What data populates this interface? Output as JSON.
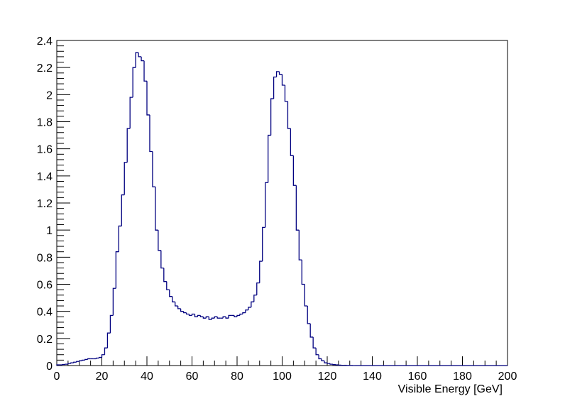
{
  "chart_data": {
    "type": "histogram",
    "x_label": "Visible Energy [GeV]",
    "color": "#000080",
    "bins": [
      0,
      1.25,
      2.5,
      3.75,
      5,
      6.25,
      7.5,
      8.75,
      10,
      11.25,
      12.5,
      13.75,
      15,
      16.25,
      17.5,
      18.75,
      20,
      21.25,
      22.5,
      23.75,
      25,
      26.25,
      27.5,
      28.75,
      30,
      31.25,
      32.5,
      33.75,
      35,
      36.25,
      37.5,
      38.75,
      40,
      41.25,
      42.5,
      43.75,
      45,
      46.25,
      47.5,
      48.75,
      50,
      51.25,
      52.5,
      53.75,
      55,
      56.25,
      57.5,
      58.75,
      60,
      61.25,
      62.5,
      63.75,
      65,
      66.25,
      67.5,
      68.75,
      70,
      71.25,
      72.5,
      73.75,
      75,
      76.25,
      77.5,
      78.75,
      80,
      81.25,
      82.5,
      83.75,
      85,
      86.25,
      87.5,
      88.75,
      90,
      91.25,
      92.5,
      93.75,
      95,
      96.25,
      97.5,
      98.75,
      100,
      101.25,
      102.5,
      103.75,
      105,
      106.25,
      107.5,
      108.75,
      110,
      111.25,
      112.5,
      113.75,
      115,
      116.25,
      117.5,
      118.75,
      120,
      121.25,
      122.5,
      123.75,
      125,
      126.25,
      127.5,
      128.75,
      130,
      131.25,
      132.5,
      133.75,
      135,
      136.25,
      137.5,
      138.75,
      140,
      141.25,
      142.5,
      143.75,
      145,
      146.25,
      147.5,
      148.75,
      150,
      151.25,
      152.5,
      153.75,
      155,
      156.25,
      157.5,
      158.75,
      160,
      161.25,
      162.5,
      163.75,
      165,
      166.25,
      167.5,
      168.75,
      170,
      171.25,
      172.5,
      173.75,
      175,
      176.25,
      177.5,
      178.75,
      180,
      181.25,
      182.5,
      183.75,
      185,
      186.25,
      187.5,
      188.75,
      190,
      191.25,
      192.5,
      193.75,
      195,
      196.25,
      197.5,
      198.75,
      200
    ],
    "values": [
      0.005,
      0.005,
      0.008,
      0.01,
      0.015,
      0.02,
      0.025,
      0.03,
      0.035,
      0.04,
      0.045,
      0.05,
      0.05,
      0.05,
      0.055,
      0.06,
      0.08,
      0.13,
      0.24,
      0.37,
      0.57,
      0.84,
      1.03,
      1.26,
      1.5,
      1.75,
      1.98,
      2.2,
      2.31,
      2.28,
      2.25,
      2.1,
      1.85,
      1.58,
      1.32,
      1.0,
      0.85,
      0.72,
      0.62,
      0.56,
      0.51,
      0.47,
      0.44,
      0.42,
      0.4,
      0.39,
      0.38,
      0.37,
      0.38,
      0.36,
      0.37,
      0.36,
      0.35,
      0.36,
      0.34,
      0.35,
      0.36,
      0.35,
      0.35,
      0.36,
      0.35,
      0.37,
      0.37,
      0.36,
      0.37,
      0.38,
      0.39,
      0.41,
      0.43,
      0.47,
      0.52,
      0.61,
      0.77,
      1.02,
      1.35,
      1.7,
      1.97,
      2.13,
      2.17,
      2.15,
      2.07,
      1.95,
      1.75,
      1.55,
      1.33,
      1.0,
      0.78,
      0.6,
      0.44,
      0.31,
      0.21,
      0.13,
      0.08,
      0.05,
      0.035,
      0.02,
      0.015,
      0.01,
      0.007,
      0.005,
      0.003,
      0.002,
      0.002,
      0.001,
      0.001,
      0,
      0,
      0,
      0,
      0,
      0,
      0,
      0,
      0,
      0,
      0,
      0,
      0,
      0,
      0,
      0,
      0,
      0,
      0,
      0,
      0,
      0,
      0,
      0,
      0,
      0,
      0,
      0,
      0,
      0,
      0,
      0,
      0,
      0,
      0,
      0,
      0,
      0,
      0,
      0,
      0,
      0,
      0,
      0,
      0,
      0,
      0,
      0,
      0,
      0,
      0,
      0,
      0,
      0,
      0
    ],
    "xlim": [
      0,
      200
    ],
    "xticks": [
      0,
      20,
      40,
      60,
      80,
      100,
      120,
      140,
      160,
      180,
      200
    ],
    "ylim": [
      0,
      2.4
    ],
    "yticks": [
      0,
      0.2,
      0.4,
      0.6,
      0.8,
      1,
      1.2,
      1.4,
      1.6,
      1.8,
      2,
      2.2,
      2.4
    ]
  }
}
